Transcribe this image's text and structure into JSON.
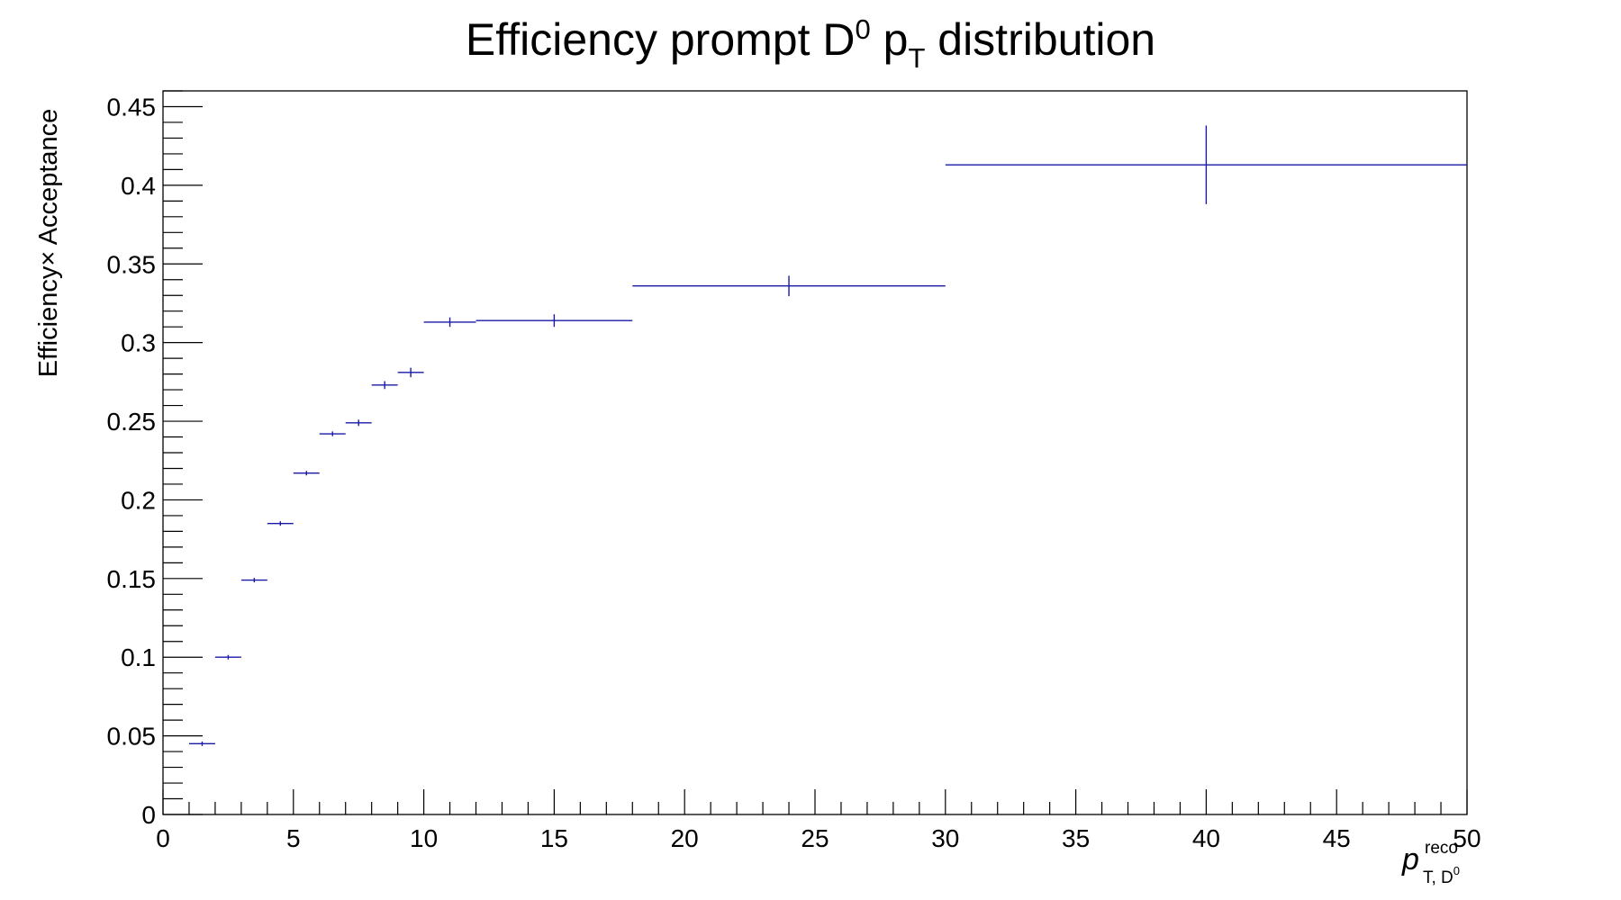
{
  "chart_data": {
    "type": "scatter",
    "title": {
      "main": "Efficiency prompt D",
      "sup": "0",
      "mid": " p",
      "sub": "T",
      "tail": " distribution"
    },
    "xlabel": {
      "main": "p",
      "sup": "reco",
      "sub": "T, D",
      "sub_sup": "0"
    },
    "ylabel": "Efficiency× Acceptance",
    "xlim": [
      0,
      50
    ],
    "ylim": [
      0,
      0.46
    ],
    "x_ticks": [
      "0",
      "5",
      "10",
      "15",
      "20",
      "25",
      "30",
      "35",
      "40",
      "45",
      "50"
    ],
    "y_ticks": [
      "0",
      "0.05",
      "0.1",
      "0.15",
      "0.2",
      "0.25",
      "0.3",
      "0.35",
      "0.4",
      "0.45"
    ],
    "grid": false,
    "legend": "none",
    "series": [
      {
        "color": "#1a1aa6",
        "points": [
          {
            "x": 1.5,
            "x_low": 1,
            "x_high": 2,
            "y": 0.045,
            "y_err": 0.0008
          },
          {
            "x": 2.5,
            "x_low": 2,
            "x_high": 3,
            "y": 0.1,
            "y_err": 0.0008
          },
          {
            "x": 3.5,
            "x_low": 3,
            "x_high": 4,
            "y": 0.149,
            "y_err": 0.0009
          },
          {
            "x": 4.5,
            "x_low": 4,
            "x_high": 5,
            "y": 0.185,
            "y_err": 0.001
          },
          {
            "x": 5.5,
            "x_low": 5,
            "x_high": 6,
            "y": 0.217,
            "y_err": 0.0012
          },
          {
            "x": 6.5,
            "x_low": 6,
            "x_high": 7,
            "y": 0.242,
            "y_err": 0.0015
          },
          {
            "x": 7.5,
            "x_low": 7,
            "x_high": 8,
            "y": 0.249,
            "y_err": 0.002
          },
          {
            "x": 8.5,
            "x_low": 8,
            "x_high": 9,
            "y": 0.273,
            "y_err": 0.0025
          },
          {
            "x": 9.5,
            "x_low": 9,
            "x_high": 10,
            "y": 0.281,
            "y_err": 0.003
          },
          {
            "x": 11,
            "x_low": 10,
            "x_high": 12,
            "y": 0.313,
            "y_err": 0.003
          },
          {
            "x": 15,
            "x_low": 12,
            "x_high": 18,
            "y": 0.314,
            "y_err": 0.004
          },
          {
            "x": 24,
            "x_low": 18,
            "x_high": 30,
            "y": 0.336,
            "y_err": 0.0065
          },
          {
            "x": 40,
            "x_low": 30,
            "x_high": 50,
            "y": 0.413,
            "y_err": 0.025
          }
        ]
      }
    ]
  }
}
